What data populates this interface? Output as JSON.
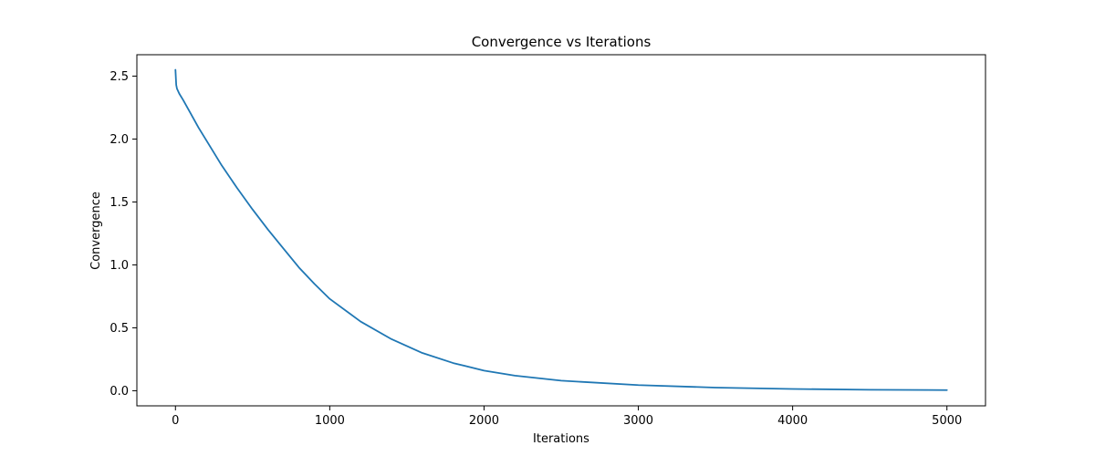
{
  "chart_data": {
    "type": "line",
    "title": "Convergence vs Iterations",
    "xlabel": "Iterations",
    "ylabel": "Convergence",
    "xlim": [
      -250,
      5250
    ],
    "ylim": [
      -0.12,
      2.67
    ],
    "xticks": [
      0,
      1000,
      2000,
      3000,
      4000,
      5000
    ],
    "yticks": [
      0.0,
      0.5,
      1.0,
      1.5,
      2.0,
      2.5
    ],
    "xtick_labels": [
      "0",
      "1000",
      "2000",
      "3000",
      "4000",
      "5000"
    ],
    "ytick_labels": [
      "0.0",
      "0.5",
      "1.0",
      "1.5",
      "2.0",
      "2.5"
    ],
    "grid": false,
    "legend": "none",
    "series": [
      {
        "color": "#1f77b4",
        "x": [
          0,
          5,
          10,
          25,
          50,
          100,
          150,
          200,
          300,
          400,
          500,
          600,
          700,
          800,
          900,
          1000,
          1200,
          1400,
          1600,
          1800,
          2000,
          2200,
          2500,
          3000,
          3500,
          4000,
          4500,
          5000
        ],
        "y": [
          2.55,
          2.43,
          2.4,
          2.36,
          2.31,
          2.2,
          2.09,
          1.99,
          1.79,
          1.61,
          1.44,
          1.28,
          1.13,
          0.98,
          0.85,
          0.73,
          0.55,
          0.41,
          0.3,
          0.22,
          0.16,
          0.12,
          0.08,
          0.045,
          0.025,
          0.014,
          0.008,
          0.005
        ]
      }
    ]
  }
}
